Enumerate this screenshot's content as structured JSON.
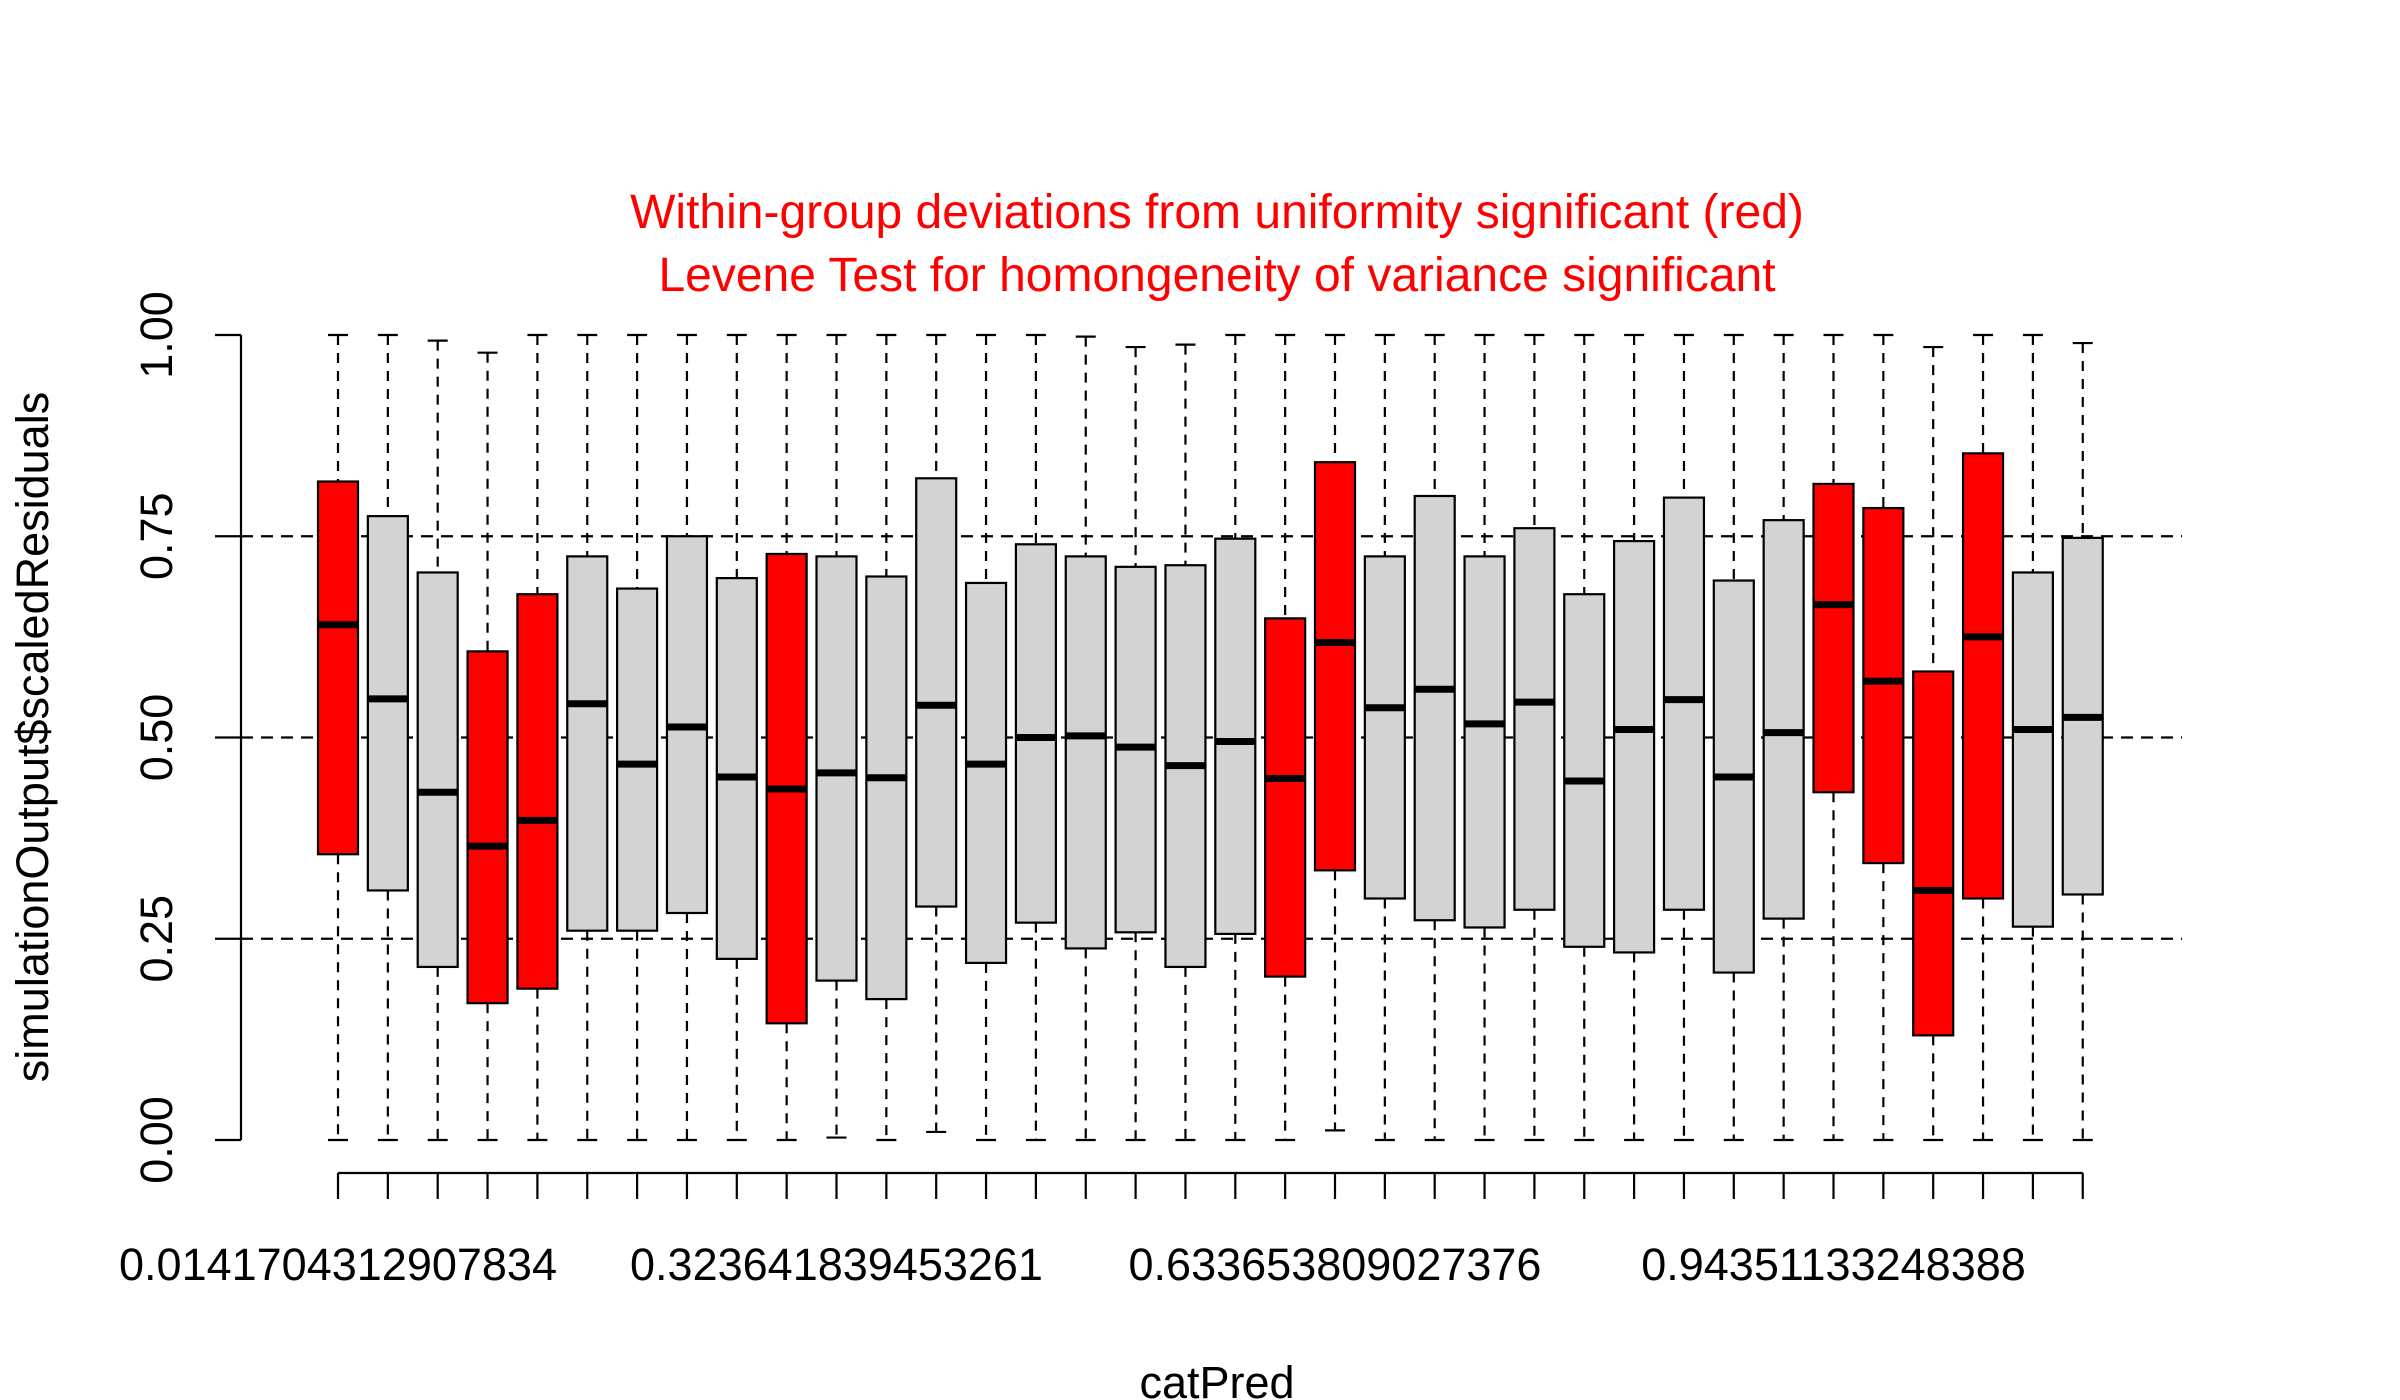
{
  "chart_data": {
    "type": "box",
    "title_lines": [
      "Within-group deviations from uniformity significant (red)",
      "Levene Test for homongeneity of variance significant"
    ],
    "xlabel": "catPred",
    "ylabel": "simulationOutput$scaledResiduals",
    "ylim": [
      0,
      1
    ],
    "yticks": [
      "0.00",
      "0.25",
      "0.50",
      "0.75",
      "1.00"
    ],
    "xtick_labels": [
      "0.0141704312907834",
      "0.323641839453261",
      "0.633653809027376",
      "0.94351133248388"
    ],
    "xtick_label_positions": [
      1,
      11,
      21,
      31
    ],
    "reference_lines": [
      0.25,
      0.5,
      0.75
    ],
    "colors": {
      "significant": "#FF0000",
      "normal": "#D3D3D3",
      "title": "#FF0000"
    },
    "boxes": [
      {
        "min": 0.0,
        "q1": 0.355,
        "median": 0.64,
        "q3": 0.818,
        "max": 1.0,
        "significant": true
      },
      {
        "min": 0.0,
        "q1": 0.31,
        "median": 0.548,
        "q3": 0.775,
        "max": 1.0,
        "significant": false
      },
      {
        "min": 0.0,
        "q1": 0.215,
        "median": 0.432,
        "q3": 0.705,
        "max": 0.993,
        "significant": false
      },
      {
        "min": 0.0,
        "q1": 0.17,
        "median": 0.365,
        "q3": 0.607,
        "max": 0.978,
        "significant": true
      },
      {
        "min": 0.0,
        "q1": 0.188,
        "median": 0.397,
        "q3": 0.678,
        "max": 1.0,
        "significant": true
      },
      {
        "min": 0.0,
        "q1": 0.26,
        "median": 0.542,
        "q3": 0.725,
        "max": 1.0,
        "significant": false
      },
      {
        "min": 0.0,
        "q1": 0.26,
        "median": 0.467,
        "q3": 0.685,
        "max": 1.0,
        "significant": false
      },
      {
        "min": 0.0,
        "q1": 0.282,
        "median": 0.513,
        "q3": 0.75,
        "max": 1.0,
        "significant": false
      },
      {
        "min": 0.0,
        "q1": 0.225,
        "median": 0.451,
        "q3": 0.698,
        "max": 1.0,
        "significant": false
      },
      {
        "min": 0.0,
        "q1": 0.145,
        "median": 0.436,
        "q3": 0.728,
        "max": 1.0,
        "significant": true
      },
      {
        "min": 0.003,
        "q1": 0.198,
        "median": 0.456,
        "q3": 0.725,
        "max": 1.0,
        "significant": false
      },
      {
        "min": 0.0,
        "q1": 0.175,
        "median": 0.45,
        "q3": 0.7,
        "max": 1.0,
        "significant": false
      },
      {
        "min": 0.01,
        "q1": 0.29,
        "median": 0.54,
        "q3": 0.822,
        "max": 1.0,
        "significant": false
      },
      {
        "min": 0.0,
        "q1": 0.22,
        "median": 0.467,
        "q3": 0.692,
        "max": 1.0,
        "significant": false
      },
      {
        "min": 0.0,
        "q1": 0.27,
        "median": 0.5,
        "q3": 0.74,
        "max": 1.0,
        "significant": false
      },
      {
        "min": 0.0,
        "q1": 0.238,
        "median": 0.502,
        "q3": 0.725,
        "max": 0.998,
        "significant": false
      },
      {
        "min": 0.0,
        "q1": 0.258,
        "median": 0.488,
        "q3": 0.712,
        "max": 0.985,
        "significant": false
      },
      {
        "min": 0.0,
        "q1": 0.215,
        "median": 0.465,
        "q3": 0.714,
        "max": 0.988,
        "significant": false
      },
      {
        "min": 0.0,
        "q1": 0.256,
        "median": 0.495,
        "q3": 0.747,
        "max": 1.0,
        "significant": false
      },
      {
        "min": 0.0,
        "q1": 0.203,
        "median": 0.449,
        "q3": 0.648,
        "max": 1.0,
        "significant": true
      },
      {
        "min": 0.012,
        "q1": 0.335,
        "median": 0.618,
        "q3": 0.842,
        "max": 1.0,
        "significant": true
      },
      {
        "min": 0.0,
        "q1": 0.3,
        "median": 0.537,
        "q3": 0.725,
        "max": 1.0,
        "significant": false
      },
      {
        "min": 0.0,
        "q1": 0.273,
        "median": 0.56,
        "q3": 0.8,
        "max": 1.0,
        "significant": false
      },
      {
        "min": 0.0,
        "q1": 0.264,
        "median": 0.517,
        "q3": 0.725,
        "max": 1.0,
        "significant": false
      },
      {
        "min": 0.0,
        "q1": 0.286,
        "median": 0.544,
        "q3": 0.76,
        "max": 1.0,
        "significant": false
      },
      {
        "min": 0.0,
        "q1": 0.24,
        "median": 0.446,
        "q3": 0.678,
        "max": 1.0,
        "significant": false
      },
      {
        "min": 0.0,
        "q1": 0.233,
        "median": 0.51,
        "q3": 0.744,
        "max": 1.0,
        "significant": false
      },
      {
        "min": 0.0,
        "q1": 0.286,
        "median": 0.547,
        "q3": 0.798,
        "max": 1.0,
        "significant": false
      },
      {
        "min": 0.0,
        "q1": 0.208,
        "median": 0.451,
        "q3": 0.695,
        "max": 1.0,
        "significant": false
      },
      {
        "min": 0.0,
        "q1": 0.275,
        "median": 0.506,
        "q3": 0.77,
        "max": 1.0,
        "significant": false
      },
      {
        "min": 0.0,
        "q1": 0.432,
        "median": 0.665,
        "q3": 0.815,
        "max": 1.0,
        "significant": true
      },
      {
        "min": 0.0,
        "q1": 0.344,
        "median": 0.57,
        "q3": 0.785,
        "max": 1.0,
        "significant": true
      },
      {
        "min": 0.0,
        "q1": 0.13,
        "median": 0.31,
        "q3": 0.582,
        "max": 0.985,
        "significant": true
      },
      {
        "min": 0.0,
        "q1": 0.3,
        "median": 0.625,
        "q3": 0.853,
        "max": 1.0,
        "significant": true
      },
      {
        "min": 0.0,
        "q1": 0.265,
        "median": 0.51,
        "q3": 0.705,
        "max": 1.0,
        "significant": false
      },
      {
        "min": 0.0,
        "q1": 0.305,
        "median": 0.525,
        "q3": 0.748,
        "max": 0.99,
        "significant": false
      }
    ]
  }
}
